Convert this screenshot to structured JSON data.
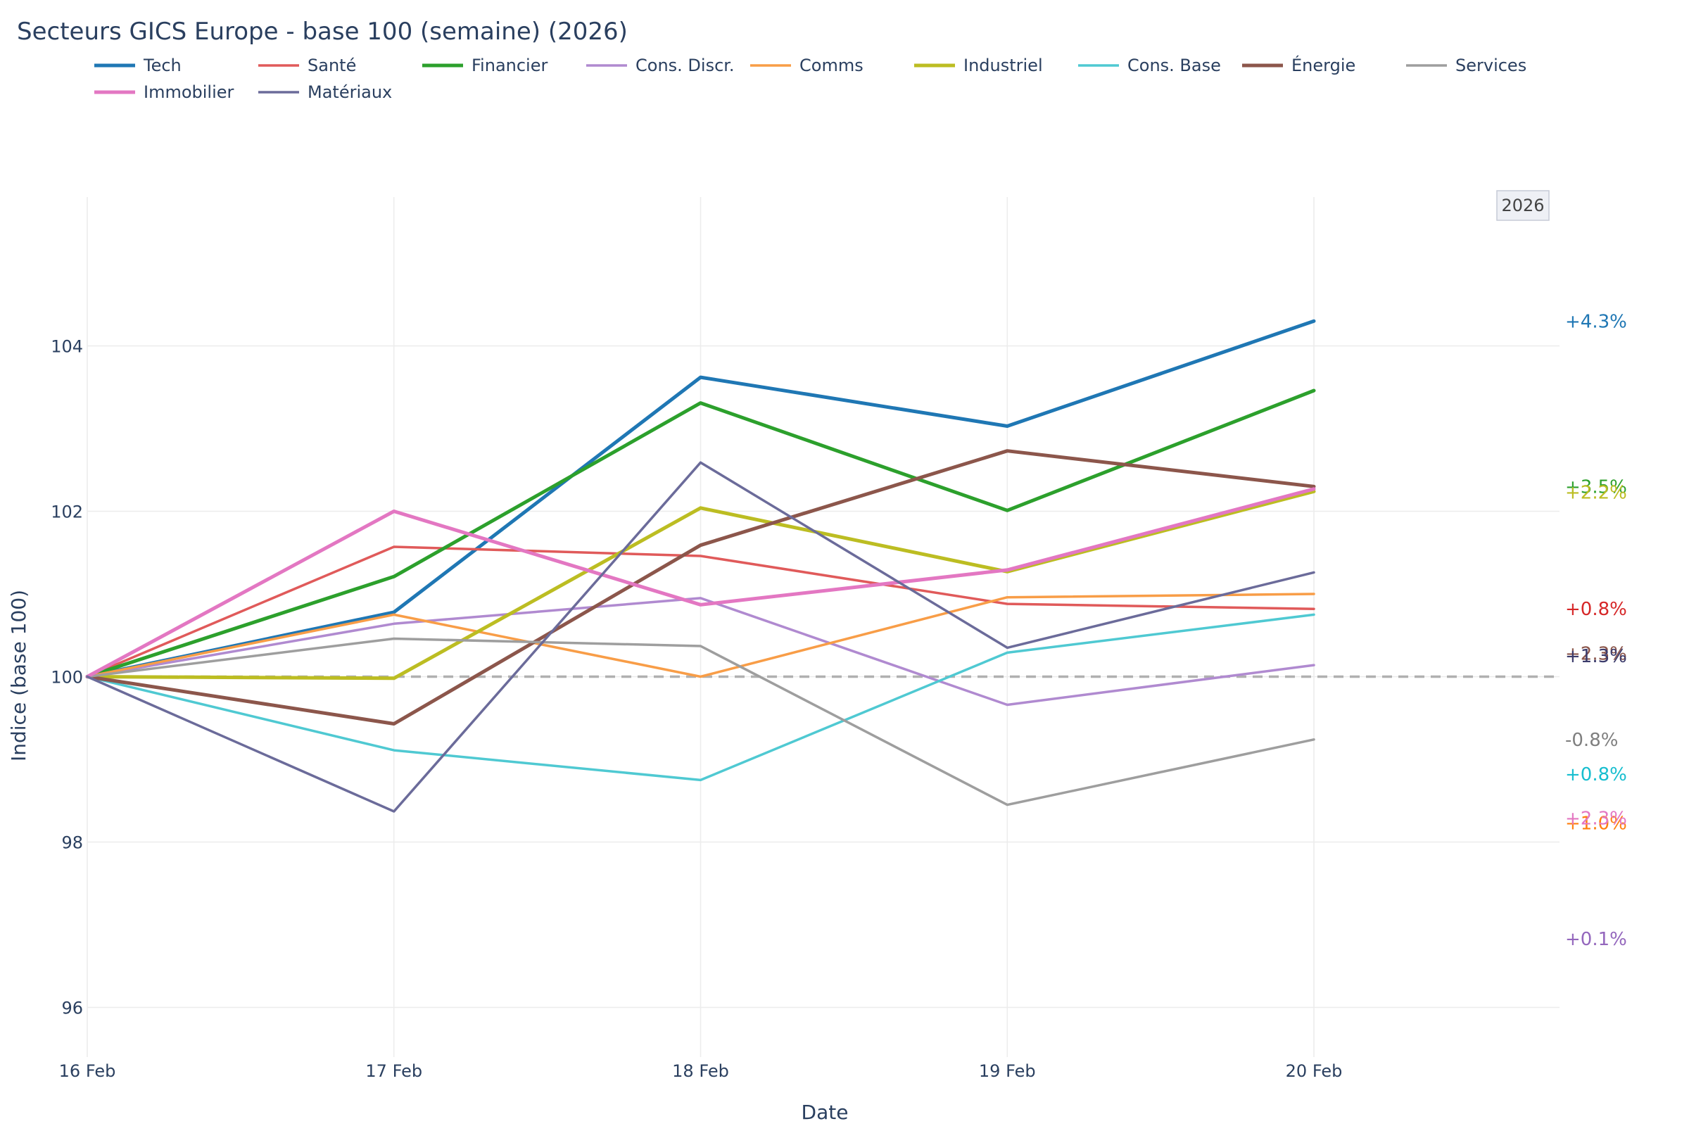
{
  "chart_data": {
    "type": "line",
    "title": "Secteurs GICS Europe - base 100 (semaine) (2026)",
    "xlabel": "Date",
    "ylabel": "Indice (base 100)",
    "categories": [
      "16 Feb",
      "17 Feb",
      "18 Feb",
      "19 Feb",
      "20 Feb"
    ],
    "ylim": [
      95.4,
      105.8
    ],
    "yticks": [
      96,
      98,
      100,
      102,
      104
    ],
    "baseline": 100,
    "grid": true,
    "legend_position": "top",
    "badge": "2026",
    "series": [
      {
        "name": "Tech",
        "color": "#1f77b4",
        "width": 5,
        "values": [
          100,
          100.78,
          103.62,
          103.03,
          104.3
        ],
        "end_label": "+4.3%",
        "end_label_value": 104.3,
        "end_label_color": "#1f77b4"
      },
      {
        "name": "Santé",
        "color": "#e05a5a",
        "width": 3.5,
        "values": [
          100,
          101.57,
          101.46,
          100.88,
          100.82
        ],
        "end_label": "+0.8%",
        "end_label_value": 100.82,
        "end_label_color": "#d62728"
      },
      {
        "name": "Financier",
        "color": "#2ca02c",
        "width": 5,
        "values": [
          100,
          101.21,
          103.31,
          102.01,
          103.46
        ],
        "end_label": "+3.5%",
        "end_label_value": 102.3,
        "end_label_color": "#2ca02c"
      },
      {
        "name": "Cons. Discr.",
        "color": "#b08ad0",
        "width": 3.5,
        "values": [
          100,
          100.64,
          100.95,
          99.66,
          100.14
        ],
        "end_label": "+0.1%",
        "end_label_value": 96.83,
        "end_label_color": "#9467bd"
      },
      {
        "name": "Comms",
        "color": "#f89d47",
        "width": 3.5,
        "values": [
          100,
          100.75,
          100.0,
          100.96,
          101.0
        ],
        "end_label": "+1.0%",
        "end_label_value": 98.23,
        "end_label_color": "#ff7f0e"
      },
      {
        "name": "Industriel",
        "color": "#bcbd22",
        "width": 5,
        "values": [
          100,
          99.98,
          102.04,
          101.27,
          102.24
        ],
        "end_label": "+2.2%",
        "end_label_value": 102.23,
        "end_label_color": "#bcbd22"
      },
      {
        "name": "Cons. Base",
        "color": "#4fc9d2",
        "width": 3.5,
        "values": [
          100,
          99.11,
          98.75,
          100.29,
          100.75
        ],
        "end_label": "+0.8%",
        "end_label_value": 98.82,
        "end_label_color": "#17becf"
      },
      {
        "name": "Énergie",
        "color": "#8c564b",
        "width": 5,
        "values": [
          100,
          99.43,
          101.59,
          102.73,
          102.3
        ],
        "end_label": "+2.3%",
        "end_label_value": 100.28,
        "end_label_color": "#8c564b"
      },
      {
        "name": "Services",
        "color": "#9e9e9e",
        "width": 3.5,
        "values": [
          100,
          100.46,
          100.37,
          98.45,
          99.24
        ],
        "end_label": "-0.8%",
        "end_label_value": 99.24,
        "end_label_color": "#7f7f7f"
      },
      {
        "name": "Immobilier",
        "color": "#e377c2",
        "width": 5,
        "values": [
          100,
          102.0,
          100.87,
          101.29,
          102.27
        ],
        "end_label": "+2.3%",
        "end_label_value": 98.29,
        "end_label_color": "#e377c2"
      },
      {
        "name": "Matériaux",
        "color": "#6b6b9a",
        "width": 3.5,
        "values": [
          100,
          98.37,
          102.59,
          100.35,
          101.26
        ],
        "end_label": "+1.3%",
        "end_label_value": 100.25,
        "end_label_color": "#3b3b6b"
      }
    ]
  }
}
